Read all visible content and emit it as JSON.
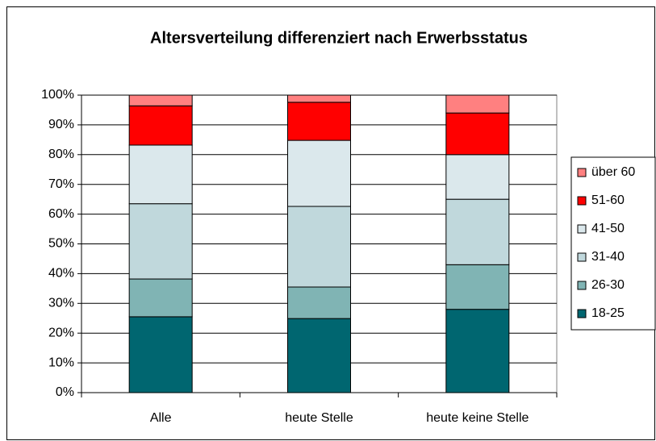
{
  "chart_data": {
    "type": "stacked_bar",
    "title": "Altersverteilung differenziert nach Erwerbsstatus",
    "categories": [
      "Alle",
      "heute Stelle",
      "heute keine Stelle"
    ],
    "series": [
      {
        "name": "18-25",
        "color": "#006670",
        "values": [
          25.5,
          24.9,
          28
        ]
      },
      {
        "name": "26-30",
        "color": "#80b4b4",
        "values": [
          12.7,
          10.6,
          15
        ]
      },
      {
        "name": "31-40",
        "color": "#c0d8dc",
        "values": [
          25.3,
          27.1,
          22
        ]
      },
      {
        "name": "41-50",
        "color": "#dbe8ec",
        "values": [
          19.7,
          22.2,
          15
        ]
      },
      {
        "name": "51-60",
        "color": "#ff0000",
        "values": [
          13.2,
          12.8,
          14
        ]
      },
      {
        "name": "über 60",
        "color": "#ff8080",
        "values": [
          3.6,
          2.4,
          6
        ]
      }
    ],
    "ylim": [
      0,
      100
    ],
    "yticks": [
      {
        "value": 0,
        "label": "0%"
      },
      {
        "value": 10,
        "label": "10%"
      },
      {
        "value": 20,
        "label": "20%"
      },
      {
        "value": 30,
        "label": "30%"
      },
      {
        "value": 40,
        "label": "40%"
      },
      {
        "value": 50,
        "label": "50%"
      },
      {
        "value": 60,
        "label": "60%"
      },
      {
        "value": 70,
        "label": "70%"
      },
      {
        "value": 80,
        "label": "80%"
      },
      {
        "value": 90,
        "label": "90%"
      },
      {
        "value": 100,
        "label": "100%"
      }
    ],
    "grid": true,
    "legend": "right"
  }
}
